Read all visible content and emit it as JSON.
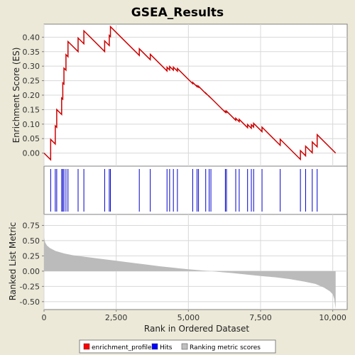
{
  "chart_data": {
    "type": "line",
    "title": "GSEA_Results",
    "xlabel": "Rank in Ordered Dataset",
    "xlim": [
      0,
      10500
    ],
    "x_ticks": [
      0,
      2500,
      5000,
      7500,
      10000
    ],
    "x_tick_labels": [
      "0",
      "2,500",
      "5,000",
      "7,500",
      "10,000"
    ],
    "n_genes": 10100,
    "panels": {
      "enrichment": {
        "ylabel": "Enrichment Score (ES)",
        "ylim": [
          -0.045,
          0.445
        ],
        "y_ticks": [
          0.0,
          0.05,
          0.1,
          0.15,
          0.2,
          0.25,
          0.3,
          0.35,
          0.4
        ],
        "y_tick_labels": [
          "0.00",
          "0.05",
          "0.10",
          "0.15",
          "0.20",
          "0.25",
          "0.30",
          "0.35",
          "0.40"
        ],
        "color": "#CC0000"
      },
      "hits": {
        "color": "#0000CC",
        "positions": [
          230,
          390,
          440,
          610,
          650,
          690,
          760,
          830,
          1180,
          1380,
          2100,
          2260,
          2300,
          3300,
          3680,
          4260,
          4350,
          4480,
          4620,
          5150,
          5300,
          5350,
          5600,
          5720,
          5780,
          6280,
          6320,
          6640,
          6760,
          7050,
          7180,
          7260,
          7550,
          8180,
          8880,
          9060,
          9290,
          9460
        ]
      },
      "ranked_metric": {
        "ylabel": "Ranked List Metric",
        "ylim": [
          -0.63,
          0.93
        ],
        "y_ticks": [
          -0.5,
          -0.25,
          0.0,
          0.25,
          0.5,
          0.75
        ],
        "y_tick_labels": [
          "-0.50",
          "-0.25",
          "0.00",
          "0.25",
          "0.50",
          "0.75"
        ],
        "color": "#BBBBBB",
        "profile": [
          [
            0,
            0.55
          ],
          [
            40,
            0.47
          ],
          [
            100,
            0.42
          ],
          [
            200,
            0.38
          ],
          [
            400,
            0.33
          ],
          [
            700,
            0.29
          ],
          [
            1000,
            0.26
          ],
          [
            1500,
            0.23
          ],
          [
            2000,
            0.2
          ],
          [
            2500,
            0.17
          ],
          [
            3000,
            0.14
          ],
          [
            3500,
            0.11
          ],
          [
            4000,
            0.08
          ],
          [
            4500,
            0.055
          ],
          [
            5000,
            0.03
          ],
          [
            5500,
            0.01
          ],
          [
            5800,
            0.0
          ],
          [
            6000,
            -0.01
          ],
          [
            6500,
            -0.03
          ],
          [
            7000,
            -0.055
          ],
          [
            7500,
            -0.08
          ],
          [
            8000,
            -0.1
          ],
          [
            8500,
            -0.13
          ],
          [
            9000,
            -0.17
          ],
          [
            9400,
            -0.21
          ],
          [
            9700,
            -0.27
          ],
          [
            9900,
            -0.33
          ],
          [
            10000,
            -0.38
          ],
          [
            10050,
            -0.45
          ],
          [
            10100,
            -0.62
          ]
        ]
      }
    },
    "legend": {
      "position": "bottom",
      "entries": [
        {
          "label": "enrichment_profile",
          "color": "#FF0000"
        },
        {
          "label": "Hits",
          "color": "#0000FF"
        },
        {
          "label": "Ranking metric scores",
          "color": "#C0C0C0"
        }
      ]
    }
  }
}
